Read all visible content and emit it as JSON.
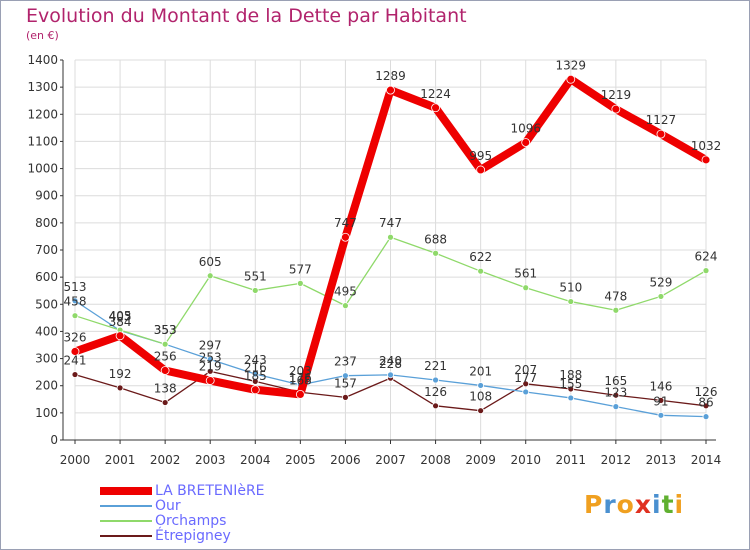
{
  "title": "Evolution du Montant de la Dette par Habitant",
  "subtitle": "(en €)",
  "logo": {
    "letters": [
      "P",
      "r",
      "o",
      "x",
      "i",
      "t",
      "i"
    ],
    "colors": [
      "#f0a020",
      "#4a90d0",
      "#f0a020",
      "#e03020",
      "#4a90d0",
      "#60b030",
      "#f0a020"
    ]
  },
  "chart_data": {
    "type": "line",
    "title": "Evolution du Montant de la Dette par Habitant",
    "ylabel": "(en €)",
    "ylim": [
      0,
      1400
    ],
    "yticks": [
      0,
      100,
      200,
      300,
      400,
      500,
      600,
      700,
      800,
      900,
      1000,
      1100,
      1200,
      1300,
      1400
    ],
    "x": [
      "2000",
      "2001",
      "2002",
      "2003",
      "2004",
      "2005",
      "2006",
      "2007",
      "2008",
      "2009",
      "2010",
      "2011",
      "2012",
      "2013",
      "2014"
    ],
    "grid": true,
    "legend_position": "bottom-left",
    "series": [
      {
        "name": "Étrepigney",
        "color": "#6b1a1a",
        "width": 1.3,
        "point": 4,
        "values": [
          241,
          192,
          138,
          253,
          216,
          176,
          157,
          228,
          126,
          108,
          207,
          188,
          165,
          146,
          126
        ],
        "labels": [
          "241",
          "192",
          "138",
          "253",
          "216",
          "176",
          "157",
          "228",
          "126",
          "108",
          "207",
          "188",
          "165",
          "146",
          "126"
        ]
      },
      {
        "name": "Our",
        "color": "#5aa0d8",
        "width": 1.3,
        "point": 4,
        "values": [
          513,
          403,
          353,
          297,
          243,
          203,
          237,
          240,
          221,
          201,
          177,
          155,
          123,
          91,
          86
        ],
        "labels": [
          "513",
          "403",
          "353",
          "297",
          "243",
          "203",
          "237",
          "240",
          "221",
          "201",
          "177",
          "155",
          "123",
          "91",
          "86"
        ]
      },
      {
        "name": "Orchamps",
        "color": "#8fd96a",
        "width": 1.3,
        "point": 4,
        "values": [
          458,
          405,
          353,
          605,
          551,
          577,
          495,
          747,
          688,
          622,
          561,
          510,
          478,
          529,
          624
        ],
        "labels": [
          "458",
          "405",
          "353",
          "605",
          "551",
          "577",
          "495",
          "747",
          "688",
          "622",
          "561",
          "510",
          "478",
          "529",
          "624"
        ]
      },
      {
        "name": "LA BRETENIèRE",
        "color": "#ee0000",
        "width": 8,
        "point": 6,
        "values": [
          326,
          384,
          256,
          219,
          185,
          168,
          747,
          1289,
          1224,
          995,
          1096,
          1329,
          1219,
          1127,
          1032
        ],
        "labels": [
          "326",
          "384",
          "256",
          "219",
          "185",
          "168",
          "747",
          "1289",
          "1224",
          "995",
          "1096",
          "1329",
          "1219",
          "1127",
          "1032"
        ]
      }
    ],
    "legend": [
      {
        "name": "LA BRETENIèRE",
        "color": "#ee0000",
        "color_text": "#6a6aff",
        "width": 8
      },
      {
        "name": "Our",
        "color": "#5aa0d8",
        "color_text": "#6a6aff",
        "width": 2
      },
      {
        "name": "Orchamps",
        "color": "#8fd96a",
        "color_text": "#6a6aff",
        "width": 2
      },
      {
        "name": "Étrepigney",
        "color": "#6b1a1a",
        "color_text": "#6a6aff",
        "width": 2
      }
    ]
  }
}
